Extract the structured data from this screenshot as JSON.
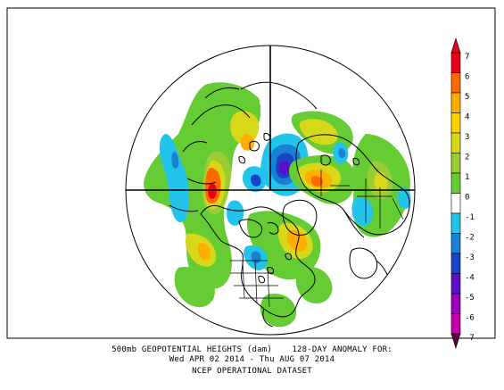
{
  "map": {
    "title_line1": "500mb GEOPOTENTIAL HEIGHTS (dam)    128-DAY ANOMALY FOR:",
    "title_line2": "Wed APR 02 2014 - Thu AUG 07 2014",
    "source": "NCEP OPERATIONAL DATASET",
    "projection": "north-polar-stereographic"
  },
  "colorbar": {
    "labels": [
      "7",
      "6",
      "5",
      "4",
      "3",
      "2",
      "1",
      "0",
      "-1",
      "-2",
      "-3",
      "-4",
      "-5",
      "-6",
      "-7"
    ],
    "colors": {
      "pos7": "#e8001c",
      "pos6": "#ff6a00",
      "pos5": "#ffae00",
      "pos4": "#ffd400",
      "pos3": "#d8d81a",
      "pos2": "#9ccc33",
      "pos1": "#66cc33",
      "neg1": "#22c4ec",
      "neg2": "#1a80d0",
      "neg3": "#1a42c8",
      "neg4": "#5a10c8",
      "neg5": "#9a00bc",
      "neg6": "#c000a8",
      "neg7": "#5a0040"
    }
  }
}
